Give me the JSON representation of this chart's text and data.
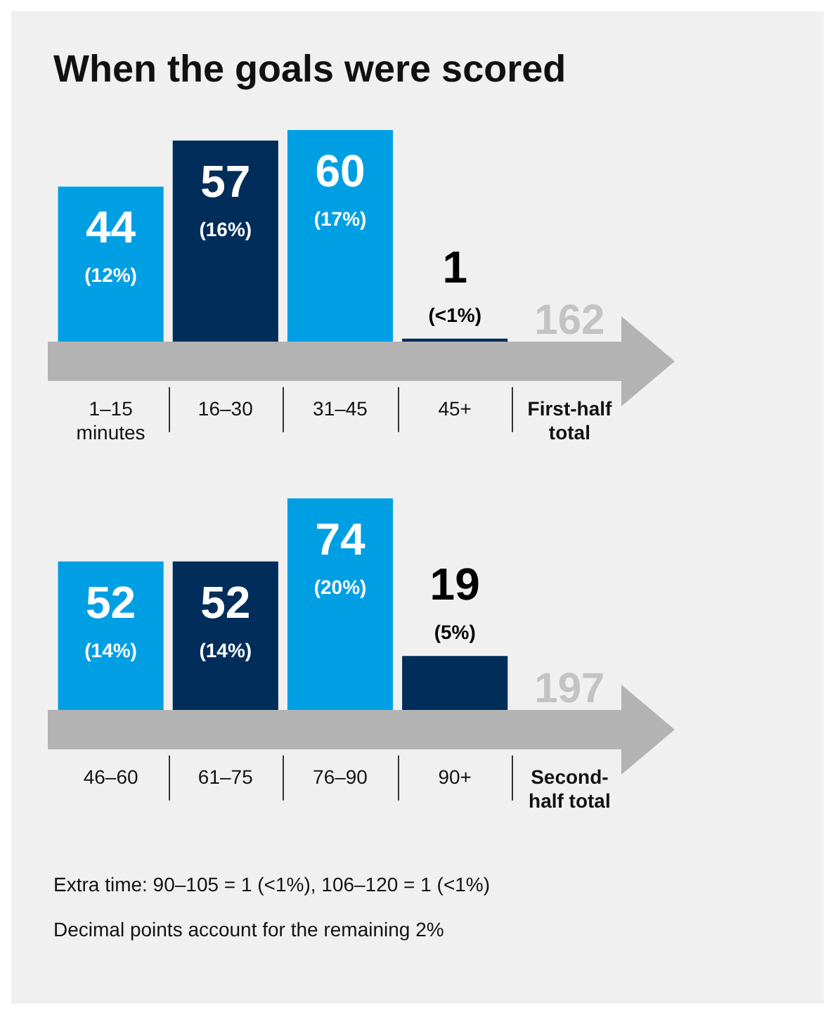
{
  "chart_data": [
    {
      "type": "bar",
      "title": "When the goals were scored",
      "categories": [
        "1–15 minutes",
        "16–30",
        "31–45",
        "45+",
        "First-half total"
      ],
      "values": [
        44,
        57,
        60,
        1,
        null
      ],
      "colors": [
        "#009fe3",
        "#002d5a",
        "#009fe3",
        "#002d5a",
        null
      ],
      "value_labels": [
        "44\n(12%)",
        "57\n(16%)",
        "60\n(17%)",
        "1\n(<1%)",
        null
      ],
      "annotations": [
        "162"
      ]
    },
    {
      "type": "bar",
      "categories": [
        "46–60",
        "61–75",
        "76–90",
        "90+",
        "Second-half total"
      ],
      "values": [
        52,
        52,
        74,
        19,
        null
      ],
      "colors": [
        "#009fe3",
        "#002d5a",
        "#009fe3",
        "#002d5a",
        null
      ],
      "value_labels": [
        "52\n(14%)",
        "52\n(14%)",
        "74\n(20%)",
        "19\n(5%)",
        null
      ],
      "annotations": [
        "197",
        "Extra time: 90–105 = 1 (<1%), 106–120 = 1 (<1%)",
        "Decimal points account for the remaining 2%"
      ]
    }
  ]
}
